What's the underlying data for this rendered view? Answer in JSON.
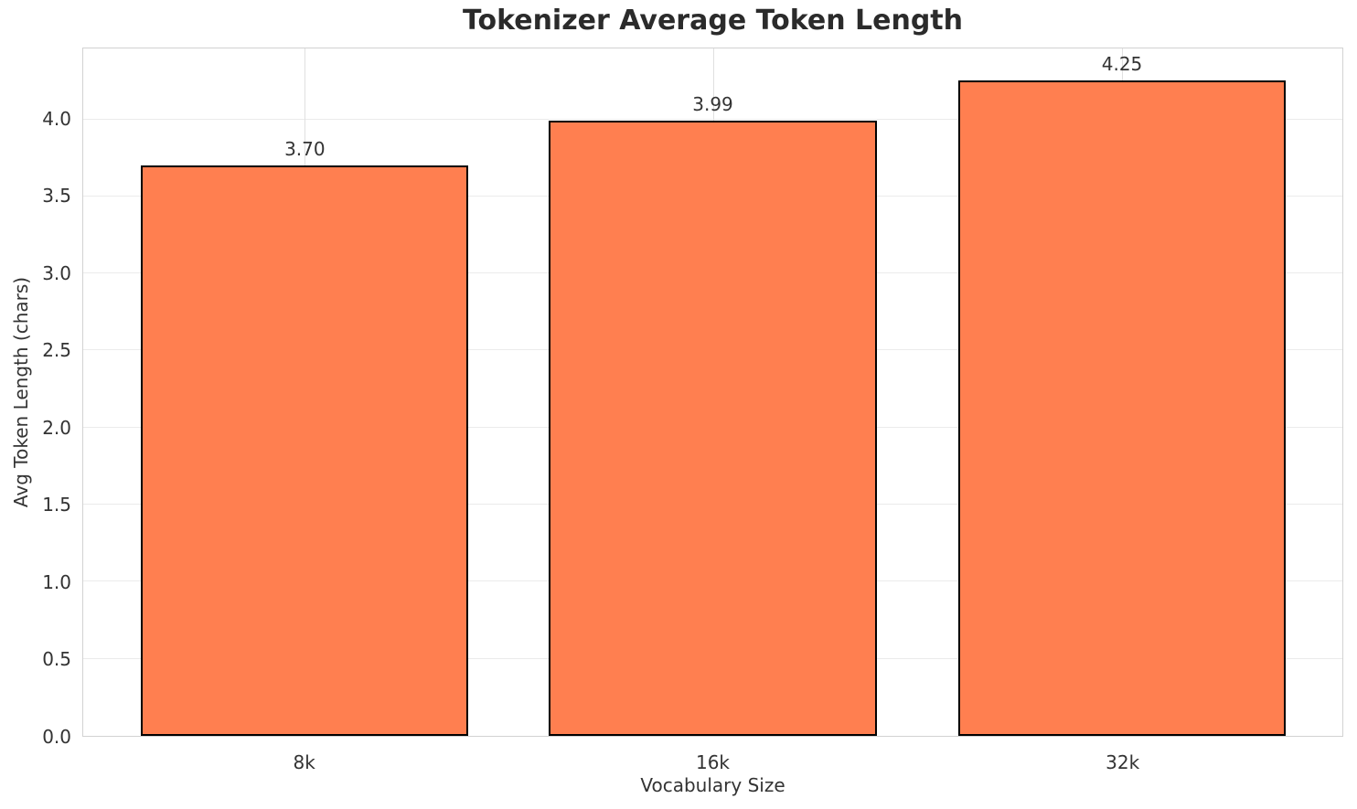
{
  "chart_data": {
    "type": "bar",
    "title": "Tokenizer Average Token Length",
    "xlabel": "Vocabulary Size",
    "ylabel": "Avg Token Length (chars)",
    "categories": [
      "8k",
      "16k",
      "32k"
    ],
    "values": [
      3.7,
      3.99,
      4.25
    ],
    "value_labels": [
      "3.70",
      "3.99",
      "4.25"
    ],
    "yticks": [
      0.0,
      0.5,
      1.0,
      1.5,
      2.0,
      2.5,
      3.0,
      3.5,
      4.0
    ],
    "ytick_labels": [
      "0.0",
      "0.5",
      "1.0",
      "1.5",
      "2.0",
      "2.5",
      "3.0",
      "3.5",
      "4.0"
    ],
    "ylim": [
      0,
      4.46
    ],
    "grid": true,
    "legend_position": "none",
    "colors": {
      "bar_fill": "#FF7F50",
      "bar_edge": "#000000",
      "grid_line": "#ebebeb",
      "spine": "#d2d2d2",
      "tick_text": "#333333",
      "title_text": "#2b2b2b",
      "background": "#ffffff"
    }
  }
}
